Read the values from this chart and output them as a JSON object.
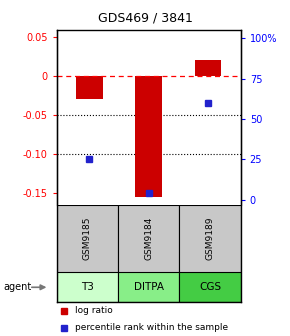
{
  "title": "GDS469 / 3841",
  "samples": [
    "GSM9185",
    "GSM9184",
    "GSM9189"
  ],
  "agents": [
    "T3",
    "DITPA",
    "CGS"
  ],
  "log_ratios": [
    -0.03,
    -0.155,
    0.02
  ],
  "percentile_ranks": [
    25,
    4,
    60
  ],
  "bar_color": "#cc0000",
  "dot_color": "#2222cc",
  "agent_colors": [
    "#ccffcc",
    "#88ee88",
    "#44cc44"
  ],
  "sample_bg_color": "#c8c8c8",
  "ylim_left": [
    -0.165,
    0.058
  ],
  "ylim_right": [
    -3.15,
    105
  ],
  "yticks_left": [
    0.05,
    0.0,
    -0.05,
    -0.1,
    -0.15
  ],
  "ytick_labels_left": [
    "0.05",
    "0",
    "-0.05",
    "-0.10",
    "-0.15"
  ],
  "yticks_right": [
    0,
    25,
    50,
    75,
    100
  ],
  "ytick_labels_right": [
    "0",
    "25",
    "50",
    "75",
    "100%"
  ],
  "dotted_lines": [
    -0.05,
    -0.1
  ],
  "legend_red": "log ratio",
  "legend_blue": "percentile rank within the sample",
  "agent_label": "agent"
}
